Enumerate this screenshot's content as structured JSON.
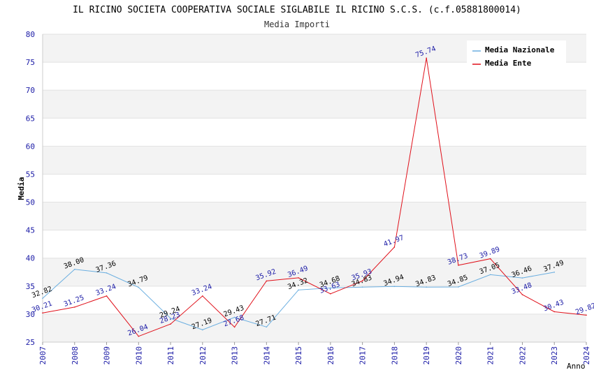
{
  "chart_data": {
    "type": "line",
    "title": "IL RICINO SOCIETA COOPERATIVA SOCIALE SIGLABILE IL RICINO S.C.S. (c.f.05881800014)",
    "subtitle": "Media Importi",
    "ylabel": "Media",
    "xlabel": "Anno",
    "ylim": [
      25,
      80
    ],
    "yticks": [
      25,
      30,
      35,
      40,
      45,
      50,
      55,
      60,
      65,
      70,
      75,
      80
    ],
    "x": [
      "2007",
      "2008",
      "2009",
      "2010",
      "2011",
      "2012",
      "2013",
      "2014",
      "2015",
      "2016",
      "2017",
      "2018",
      "2019",
      "2020",
      "2021",
      "2022",
      "2023",
      "2024"
    ],
    "series": [
      {
        "name": "Media Nazionale",
        "color": "#6aaee0",
        "values": [
          32.82,
          38.0,
          37.36,
          34.79,
          29.24,
          27.19,
          29.43,
          27.71,
          34.32,
          34.68,
          34.83,
          34.94,
          34.83,
          34.85,
          37.05,
          36.46,
          37.49,
          null
        ],
        "labels": [
          "32.82",
          "38.00",
          "37.36",
          "34.79",
          "29.24",
          "27.19",
          "29.43",
          "27.71",
          "34.32",
          "34.68",
          "34.83",
          "34.94",
          "34.83",
          "34.85",
          "37.05",
          "36.46",
          "37.49",
          null
        ]
      },
      {
        "name": "Media Ente",
        "color": "#e0101a",
        "values": [
          30.21,
          31.25,
          33.24,
          26.04,
          28.23,
          33.24,
          27.68,
          35.92,
          36.49,
          33.63,
          35.93,
          41.97,
          75.74,
          38.73,
          39.89,
          33.48,
          30.43,
          29.82
        ],
        "labels": [
          "30.21",
          "31.25",
          "33.24",
          "26.04",
          "28.23",
          "33.24",
          "27.68",
          "35.92",
          "36.49",
          "33.63",
          "35.93",
          "41.97",
          "75.74",
          "38.73",
          "39.89",
          "33.48",
          "30.43",
          "29.82"
        ]
      }
    ],
    "legend_position": "top-right",
    "bands": true
  }
}
